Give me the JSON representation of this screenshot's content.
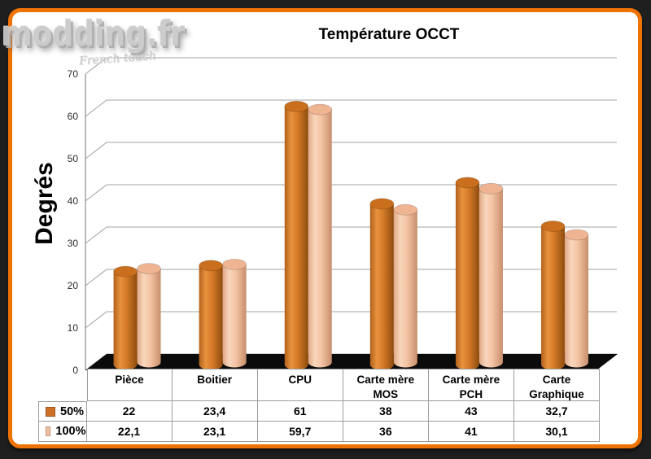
{
  "logo": {
    "text": "modding.fr",
    "tagline": "French touch"
  },
  "chart_data": {
    "type": "bar",
    "style": "3d-cylinder",
    "title": "Température OCCT",
    "ylabel": "Degrés",
    "ylim": [
      0,
      70
    ],
    "ytick_step": 10,
    "yticks": [
      0,
      10,
      20,
      30,
      40,
      50,
      60,
      70
    ],
    "grid": true,
    "legend_position": "table-left",
    "categories": [
      "Pièce",
      "Boitier",
      "CPU",
      "Carte mère\nMOS",
      "Carte mère\nPCH",
      "Carte\nGraphique"
    ],
    "series": [
      {
        "name": "50%",
        "values": [
          22,
          23.4,
          61,
          38,
          43,
          32.7
        ],
        "values_display": [
          "22",
          "23,4",
          "61",
          "38",
          "43",
          "32,7"
        ],
        "colors": {
          "swatch": "#cd7026",
          "body": [
            "#b2611b",
            "#e8923e",
            "#d57a28",
            "#8e4c0e"
          ],
          "top": "#c96f1e"
        }
      },
      {
        "name": "100%",
        "values": [
          22.1,
          23.1,
          59.7,
          36,
          41,
          30.1
        ],
        "values_display": [
          "22,1",
          "23,1",
          "59,7",
          "36",
          "41",
          "30,1"
        ],
        "colors": {
          "swatch": "#f2bfa0",
          "body": [
            "#dfa886",
            "#f9d6bc",
            "#f4c4a4",
            "#c78e6b"
          ],
          "top": "#efb492"
        }
      }
    ]
  },
  "colors": {
    "frame_border": "#ee7302",
    "frame_background": "#1f1f1f",
    "panel_background": "#ffffff",
    "grid_line": "#a3a3a3",
    "axis_line": "#8c8c8c",
    "floor": "#0b0b0b",
    "table_border": "#9b9b9b",
    "text": "#000000"
  }
}
